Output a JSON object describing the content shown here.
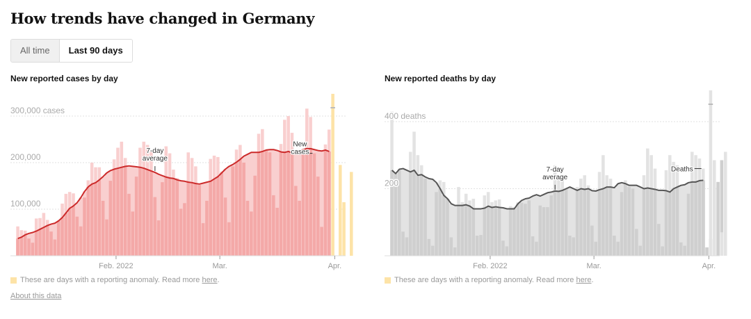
{
  "page": {
    "title": "How trends have changed in Germany",
    "toggle": {
      "all_time": "All time",
      "last_90_days": "Last 90 days",
      "selected": "Last 90 days"
    },
    "anomaly_note_prefix": "These are days with a reporting anomaly. Read more ",
    "anomaly_note_link": "here",
    "anomaly_note_suffix": ".",
    "about_link": "About this data",
    "colors": {
      "cases_bar": "#f4a9a8",
      "cases_bar_light": "#f9cfcf",
      "cases_line": "#cc2a2a",
      "deaths_bar": "#cfcfcf",
      "deaths_bar_light": "#e3e3e3",
      "deaths_line": "#555555",
      "anomaly": "#fde3a7"
    }
  },
  "chart_data": [
    {
      "type": "bar",
      "title": "New reported cases by day",
      "ylabel": "",
      "xlabel": "",
      "ylim": [
        0,
        300000
      ],
      "yticks": [
        {
          "value": 100000,
          "label": "100,000"
        },
        {
          "value": 200000,
          "label": "200,000"
        },
        {
          "value": 300000,
          "label": "300,000 cases"
        }
      ],
      "xticks": [
        {
          "day": 27,
          "label": "Feb. 2022"
        },
        {
          "day": 55,
          "label": "Mar."
        },
        {
          "day": 86,
          "label": "Apr."
        }
      ],
      "grid": true,
      "annotations": [
        {
          "text": [
            "7-day",
            "average"
          ],
          "day": 37,
          "target": "average"
        },
        {
          "text": [
            "New",
            "cases"
          ],
          "day": 80,
          "target": "bar"
        }
      ],
      "series": [
        {
          "name": "New cases",
          "values": [
            63000,
            55000,
            54000,
            37000,
            28000,
            80000,
            81000,
            92000,
            77000,
            52000,
            35000,
            75000,
            112000,
            133000,
            137000,
            134000,
            84000,
            63000,
            125000,
            162000,
            200000,
            190000,
            190000,
            118000,
            78000,
            161000,
            207000,
            232000,
            245000,
            210000,
            133000,
            95000,
            170000,
            232000,
            245000,
            238000,
            226000,
            126000,
            76000,
            158000,
            235000,
            220000,
            185000,
            167000,
            101000,
            113000,
            222000,
            210000,
            192000,
            152000,
            70000,
            118000,
            208000,
            215000,
            212000,
            181000,
            125000,
            72000,
            192000,
            228000,
            238000,
            200000,
            118000,
            95000,
            172000,
            262000,
            272000,
            227000,
            222000,
            130000,
            103000,
            240000,
            292000,
            300000,
            264000,
            150000,
            118000,
            230000,
            316000,
            298000,
            220000,
            170000,
            62000,
            239000,
            271000
          ],
          "anomaly": false
        },
        {
          "name": "7-day average",
          "values": [
            37000,
            40000,
            45000,
            48000,
            50000,
            53000,
            57000,
            61000,
            65000,
            68000,
            70000,
            75000,
            82000,
            92000,
            102000,
            107000,
            114000,
            125000,
            138000,
            148000,
            154000,
            157000,
            163000,
            170000,
            178000,
            183000,
            186000,
            188000,
            190000,
            192000,
            193000,
            192000,
            191000,
            190000,
            188000,
            185000,
            182000,
            179000,
            175000,
            172000,
            169000,
            167000,
            166000,
            163000,
            161000,
            160000,
            158000,
            157000,
            155000,
            154000,
            156000,
            158000,
            160000,
            165000,
            170000,
            178000,
            186000,
            192000,
            196000,
            201000,
            207000,
            214000,
            218000,
            222000,
            222000,
            222000,
            224000,
            227000,
            228000,
            228000,
            226000,
            223000,
            222000,
            224000,
            221000,
            221000,
            224000,
            228000,
            230000,
            230000,
            228000,
            226000,
            225000,
            227000,
            224000
          ],
          "anomaly": false
        },
        {
          "name": "Anomaly days",
          "days": [
            85,
            87,
            88,
            90
          ],
          "values": [
            330000,
            195000,
            115000,
            180000
          ],
          "truncated_first": true
        }
      ]
    },
    {
      "type": "bar",
      "title": "New reported deaths by day",
      "ylabel": "",
      "xlabel": "",
      "ylim": [
        0,
        400
      ],
      "yticks": [
        {
          "value": 200,
          "label": "200"
        },
        {
          "value": 400,
          "label": "400 deaths"
        }
      ],
      "xticks": [
        {
          "day": 27,
          "label": "Feb. 2022"
        },
        {
          "day": 55,
          "label": "Mar."
        },
        {
          "day": 86,
          "label": "Apr."
        }
      ],
      "grid": true,
      "annotations": [
        {
          "text": [
            "7-day",
            "average"
          ],
          "day": 44,
          "target": "average"
        },
        {
          "text": [
            "Deaths"
          ],
          "day": 84,
          "target": "bar"
        }
      ],
      "series": [
        {
          "name": "New deaths",
          "values": [
            430,
            250,
            255,
            72,
            55,
            310,
            370,
            300,
            270,
            230,
            50,
            30,
            190,
            225,
            220,
            170,
            55,
            25,
            205,
            160,
            185,
            165,
            170,
            60,
            62,
            180,
            190,
            160,
            165,
            168,
            45,
            28,
            148,
            145,
            160,
            158,
            155,
            165,
            58,
            42,
            150,
            145,
            145,
            180,
            270,
            235,
            225,
            200,
            60,
            55,
            205,
            230,
            240,
            210,
            90,
            42,
            250,
            300,
            240,
            230,
            60,
            42,
            190,
            225,
            205,
            200,
            80,
            30,
            240,
            320,
            300,
            260,
            95,
            28,
            255,
            300,
            280,
            270,
            40,
            30,
            185,
            310,
            300,
            290,
            260,
            25,
            50,
            205,
            220,
            285
          ],
          "anomaly": false
        },
        {
          "name": "7-day average",
          "values": [
            255,
            245,
            258,
            260,
            255,
            250,
            255,
            240,
            242,
            235,
            230,
            228,
            218,
            200,
            180,
            170,
            155,
            150,
            150,
            150,
            152,
            148,
            140,
            140,
            140,
            142,
            148,
            144,
            146,
            144,
            143,
            140,
            140,
            140,
            155,
            165,
            170,
            172,
            178,
            182,
            178,
            183,
            188,
            190,
            193,
            192,
            195,
            200,
            205,
            200,
            195,
            200,
            198,
            200,
            194,
            193,
            197,
            200,
            205,
            205,
            203,
            215,
            218,
            215,
            210,
            210,
            210,
            205,
            200,
            202,
            200,
            198,
            195,
            195,
            194,
            190,
            200,
            205,
            210,
            212,
            218,
            220,
            220,
            224,
            225
          ],
          "anomaly": false
        },
        {
          "name": "Anomaly days",
          "days": [
            86,
            87,
            89,
            90
          ],
          "values": [
            440,
            285,
            70,
            310
          ],
          "truncated_first": true
        }
      ]
    }
  ]
}
